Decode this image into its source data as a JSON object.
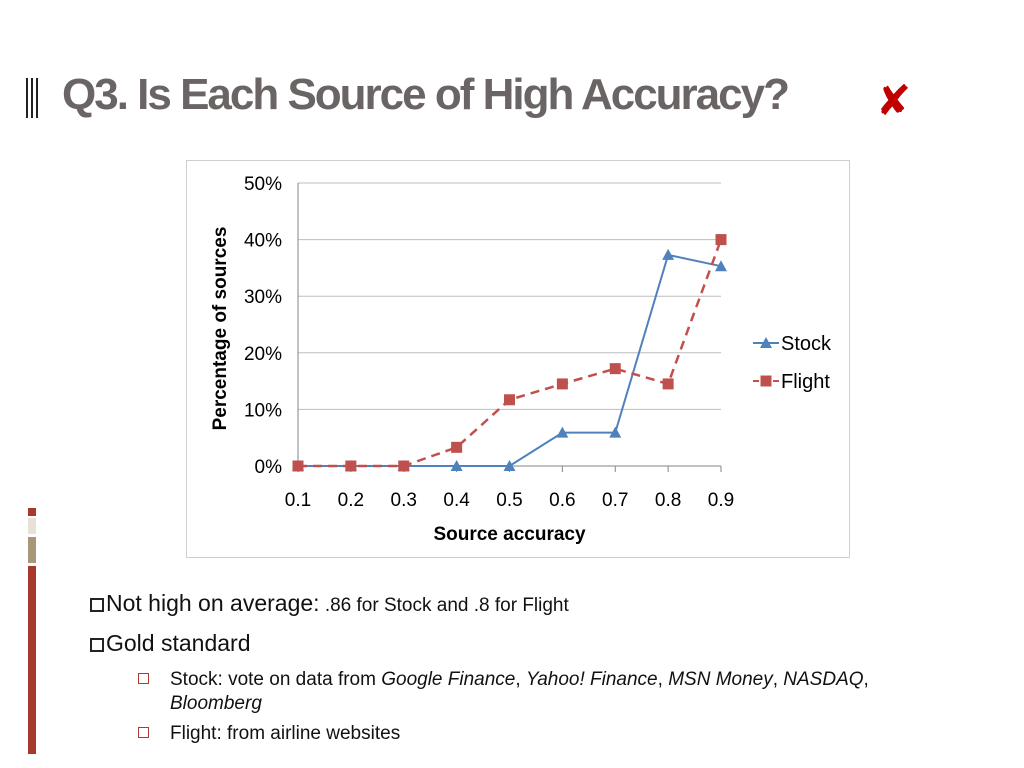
{
  "slide": {
    "title": "Q3. Is Each Source of High Accuracy?",
    "title_color": "#6b6464",
    "title_mark_icon": "cross-icon",
    "title_mark_glyph": "✘",
    "title_mark_color": "#c00000",
    "accent_colors": [
      "#a6392e",
      "#e8e1d6",
      "#a69878",
      "#a6392e"
    ]
  },
  "chart_data": {
    "type": "line",
    "categories": [
      "0.1",
      "0.2",
      "0.3",
      "0.4",
      "0.5",
      "0.6",
      "0.7",
      "0.8",
      "0.9"
    ],
    "series": [
      {
        "name": "Stock",
        "values": [
          0,
          0,
          0,
          0,
          0,
          5.9,
          5.9,
          37.3,
          35.3
        ],
        "color": "#4f81bd",
        "marker": "triangle",
        "line": "solid"
      },
      {
        "name": "Flight",
        "values": [
          0,
          0,
          0,
          3.3,
          11.7,
          14.5,
          17.2,
          14.5,
          40.0
        ],
        "color": "#c0504d",
        "marker": "square",
        "line": "dashed"
      }
    ],
    "title": "",
    "xlabel": "Source accuracy",
    "ylabel": "Percentage of sources",
    "ylim": [
      0,
      50
    ],
    "yticks": [
      "0%",
      "10%",
      "20%",
      "30%",
      "40%",
      "50%"
    ],
    "grid": "horizontal",
    "legend": "right"
  },
  "bullets": {
    "b1_main": "Not high on average:",
    "b1_detail": " .86 for Stock and .8 for Flight",
    "b2": "Gold standard",
    "sub1_prefix": "Stock: vote on data from ",
    "sub1_src1": "Google Finance",
    "sep1": ", ",
    "sub1_src2": "Yahoo! Finance",
    "sep2": ", ",
    "sub1_src3": "MSN Money",
    "sep3": ", ",
    "sub1_src4": "NASDAQ",
    "sep4": ", ",
    "sub1_src5": "Bloomberg",
    "sub2": "Flight: from airline websites"
  }
}
